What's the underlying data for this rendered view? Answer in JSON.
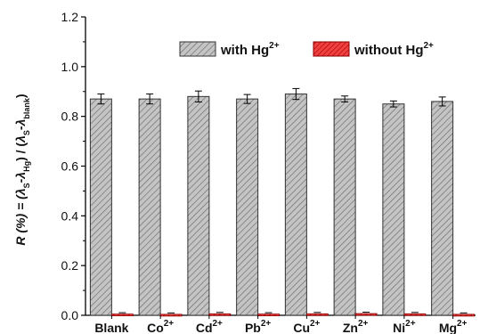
{
  "chart_data": {
    "type": "bar",
    "categories": [
      {
        "base": "Blank",
        "sup": ""
      },
      {
        "base": "Co",
        "sup": "2+"
      },
      {
        "base": "Cd",
        "sup": "2+"
      },
      {
        "base": "Pb",
        "sup": "2+"
      },
      {
        "base": "Cu",
        "sup": "2+"
      },
      {
        "base": "Zn",
        "sup": "2+"
      },
      {
        "base": "Ni",
        "sup": "2+"
      },
      {
        "base": "Mg",
        "sup": "2+"
      }
    ],
    "series": [
      {
        "name": "with Hg",
        "name_sup": "2+",
        "color": "#b0b0b0",
        "pattern": "diagonal-hatch",
        "values": [
          0.87,
          0.87,
          0.88,
          0.87,
          0.89,
          0.87,
          0.85,
          0.86
        ],
        "errors": [
          0.02,
          0.02,
          0.022,
          0.018,
          0.022,
          0.012,
          0.012,
          0.018
        ]
      },
      {
        "name": "without Hg",
        "name_sup": "2+",
        "color": "#e02020",
        "pattern": "diagonal-hatch",
        "values": [
          0.005,
          0.004,
          0.006,
          0.005,
          0.006,
          0.007,
          0.006,
          0.004
        ],
        "errors": [
          0.002,
          0.002,
          0.002,
          0.002,
          0.002,
          0.002,
          0.002,
          0.002
        ]
      }
    ],
    "ylabel": {
      "text": "R (%) = (λ",
      "parts": [
        {
          "t": "R (%) = (",
          "style": "italic"
        },
        {
          "t": "λ",
          "style": "italic"
        },
        {
          "t": "S",
          "sub": true
        },
        {
          "t": "-",
          "style": "normal"
        },
        {
          "t": "λ",
          "style": "italic"
        },
        {
          "t": "Hg",
          "sub": true
        },
        {
          "t": ") / (",
          "style": "normal"
        },
        {
          "t": "λ",
          "style": "italic"
        },
        {
          "t": "S",
          "sub": true
        },
        {
          "t": "-",
          "style": "normal"
        },
        {
          "t": "λ",
          "style": "italic"
        },
        {
          "t": "blank",
          "sub": true
        },
        {
          "t": ")",
          "style": "normal"
        }
      ]
    },
    "ylim": [
      0.0,
      1.2
    ],
    "yticks": [
      "0.0",
      "0.2",
      "0.4",
      "0.6",
      "0.8",
      "1.0",
      "1.2"
    ],
    "grid": false,
    "legend_position": "top"
  }
}
